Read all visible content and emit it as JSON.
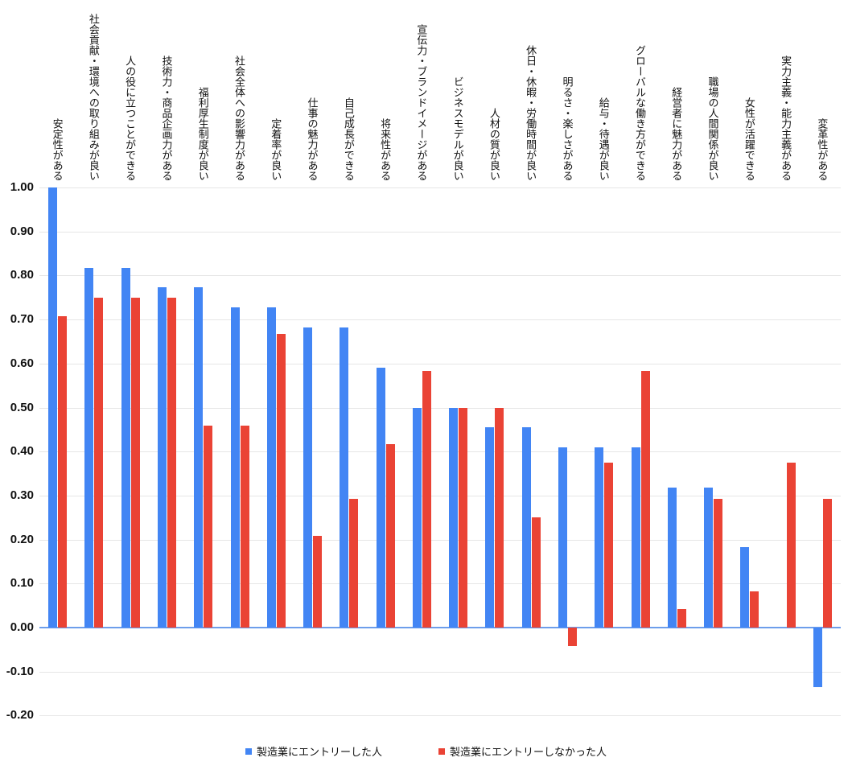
{
  "chart_data": {
    "type": "bar",
    "title": "",
    "xlabel": "",
    "ylabel": "",
    "ylim": [
      -0.2,
      1.0
    ],
    "ytick_step": 0.1,
    "ytick_labels": [
      "1.00",
      "0.90",
      "0.80",
      "0.70",
      "0.60",
      "0.50",
      "0.40",
      "0.30",
      "0.20",
      "0.10",
      "0.00",
      "-0.10",
      "-0.20"
    ],
    "grid": true,
    "legend_position": "bottom",
    "categories": [
      "安定性がある",
      "社会貢献・環境への取り組みが良い",
      "人の役に立つことができる",
      "技術力・商品企画力がある",
      "福利厚生制度が良い",
      "社会全体への影響力がある",
      "定着率が良い",
      "仕事の魅力がある",
      "自己成長ができる",
      "将来性がある",
      "宣伝力・ブランドイメージがある",
      "ビジネスモデルが良い",
      "人材の質が良い",
      "休日・休暇・労働時間が良い",
      "明るさ・楽しさがある",
      "給与・待遇が良い",
      "グローバルな働き方ができる",
      "経営者に魅力がある",
      "職場の人間関係が良い",
      "女性が活躍できる",
      "実力主義・能力主義がある",
      "変革性がある"
    ],
    "series": [
      {
        "name": "製造業にエントリーした人",
        "color": "#4285f4",
        "values": [
          1.0,
          0.818,
          0.818,
          0.773,
          0.773,
          0.727,
          0.727,
          0.682,
          0.682,
          0.591,
          0.5,
          0.5,
          0.455,
          0.455,
          0.409,
          0.409,
          0.409,
          0.318,
          0.318,
          0.182,
          0.0,
          -0.136
        ]
      },
      {
        "name": "製造業にエントリーしなかった人",
        "color": "#ea4335",
        "values": [
          0.708,
          0.75,
          0.75,
          0.75,
          0.458,
          0.458,
          0.667,
          0.208,
          0.292,
          0.417,
          0.583,
          0.5,
          0.5,
          0.25,
          -0.042,
          0.375,
          0.583,
          0.042,
          0.292,
          0.083,
          0.375,
          0.292
        ]
      }
    ],
    "colors": {
      "series1": "#4285f4",
      "series2": "#ea4335",
      "gridline": "#e6e6e6",
      "zero_axis": "#6d9eeb"
    }
  }
}
